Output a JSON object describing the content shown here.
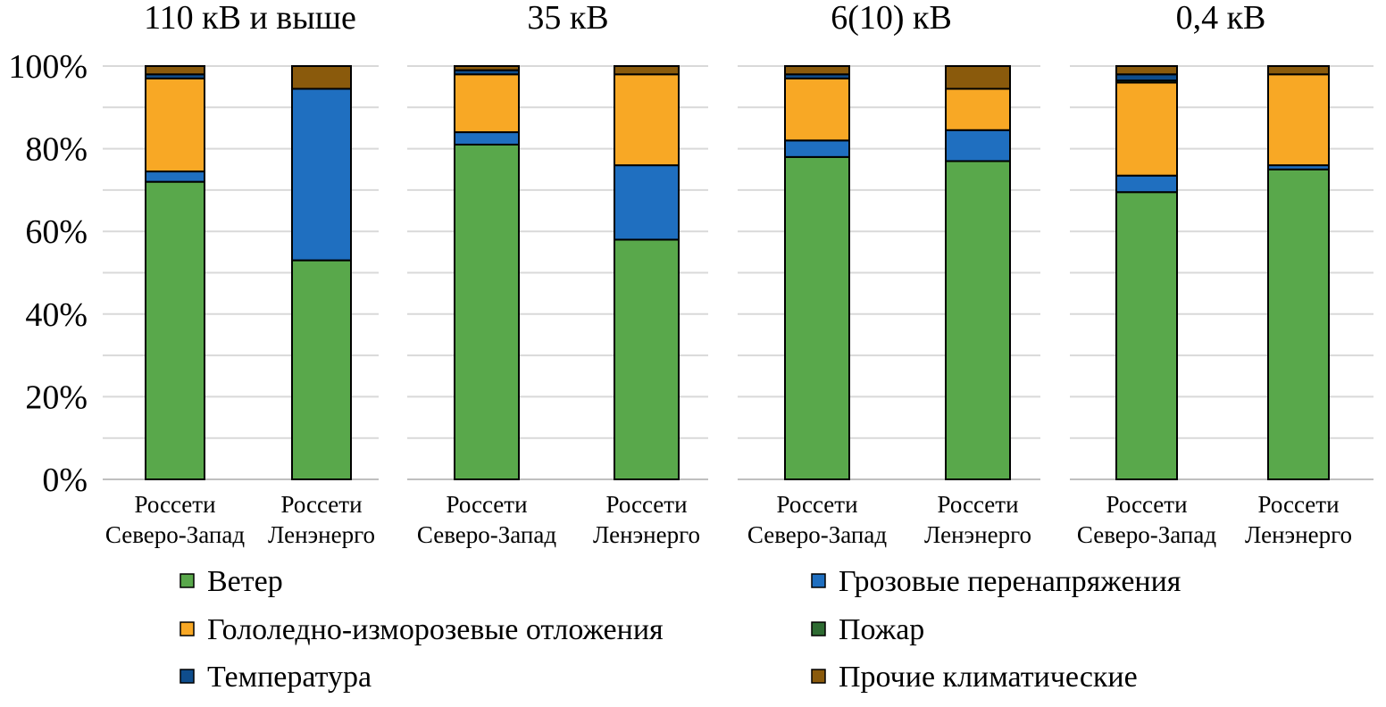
{
  "chart_data": {
    "type": "bar",
    "stacked": true,
    "normalized_percent": true,
    "yticks": [
      "0%",
      "20%",
      "40%",
      "60%",
      "80%",
      "100%"
    ],
    "ylim": [
      0,
      100
    ],
    "grid": true,
    "legend_position": "bottom",
    "series_names": [
      "Ветер",
      "Грозовые перенапряжения",
      "Гололедно-изморозевые отложения",
      "Пожар",
      "Температура",
      "Прочие климатические"
    ],
    "colors": {
      "Ветер": "#59a84b",
      "Грозовые перенапряжения": "#1f6fc0",
      "Гололедно-изморозевые отложения": "#f8a825",
      "Пожар": "#2e6b32",
      "Температура": "#0f4d8c",
      "Прочие климатические": "#8a5a0c"
    },
    "stack_order": [
      "Ветер",
      "Грозовые перенапряжения",
      "Гололедно-изморозевые отложения",
      "Пожар",
      "Температура",
      "Прочие климатические"
    ],
    "legend_order": [
      "Ветер",
      "Грозовые перенапряжения",
      "Гололедно-изморозевые отложения",
      "Пожар",
      "Температура",
      "Прочие климатические"
    ],
    "panels": [
      {
        "title": "110 кВ и выше",
        "categories": [
          {
            "line1": "Россети",
            "line2": "Северо-Запад"
          },
          {
            "line1": "Россети",
            "line2": "Ленэнерго"
          }
        ],
        "values": {
          "Ветер": [
            72,
            53
          ],
          "Грозовые перенапряжения": [
            2.5,
            41.5
          ],
          "Гололедно-изморозевые отложения": [
            22.5,
            0
          ],
          "Пожар": [
            0,
            0
          ],
          "Температура": [
            1,
            0
          ],
          "Прочие климатические": [
            2,
            5.5
          ]
        }
      },
      {
        "title": "35 кВ",
        "categories": [
          {
            "line1": "Россети",
            "line2": "Северо-Запад"
          },
          {
            "line1": "Россети",
            "line2": "Ленэнерго"
          }
        ],
        "values": {
          "Ветер": [
            81,
            58
          ],
          "Грозовые перенапряжения": [
            3,
            18
          ],
          "Гололедно-изморозевые отложения": [
            14,
            22
          ],
          "Пожар": [
            0,
            0
          ],
          "Температура": [
            1,
            0
          ],
          "Прочие климатические": [
            1,
            2
          ]
        }
      },
      {
        "title": "6(10) кВ",
        "categories": [
          {
            "line1": "Россети",
            "line2": "Северо-Запад"
          },
          {
            "line1": "Россети",
            "line2": "Ленэнерго"
          }
        ],
        "values": {
          "Ветер": [
            78,
            77
          ],
          "Грозовые перенапряжения": [
            4,
            7.5
          ],
          "Гололедно-изморозевые отложения": [
            15,
            10
          ],
          "Пожар": [
            0,
            0
          ],
          "Температура": [
            1,
            0
          ],
          "Прочие климатические": [
            2,
            5.5
          ]
        }
      },
      {
        "title": "0,4 кВ",
        "categories": [
          {
            "line1": "Россети",
            "line2": "Северо-Запад"
          },
          {
            "line1": "Россети",
            "line2": "Ленэнерго"
          }
        ],
        "values": {
          "Ветер": [
            69.5,
            75
          ],
          "Грозовые перенапряжения": [
            4,
            1
          ],
          "Гололедно-изморозевые отложения": [
            22.5,
            22
          ],
          "Пожар": [
            0.5,
            0
          ],
          "Температура": [
            1.5,
            0
          ],
          "Прочие климатические": [
            2,
            2
          ]
        }
      }
    ]
  }
}
